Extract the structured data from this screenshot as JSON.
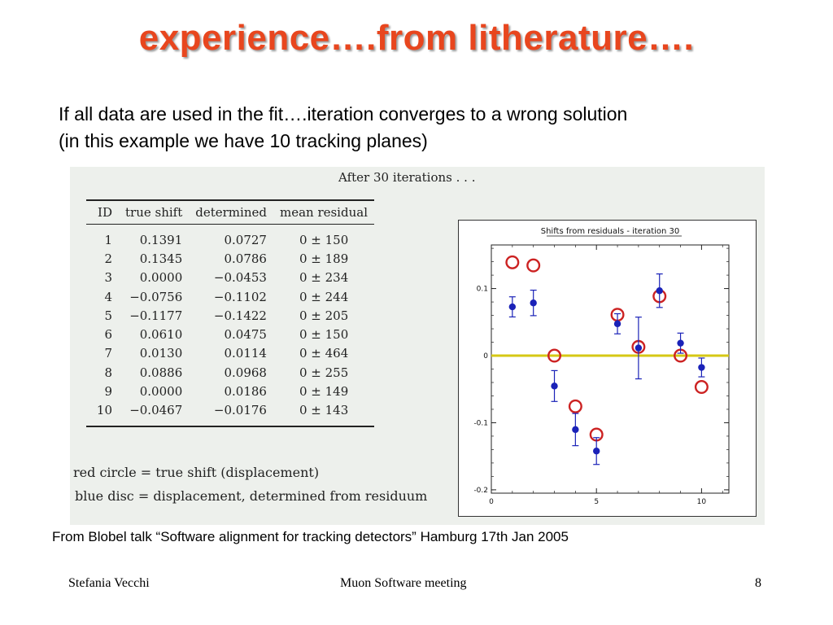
{
  "slide": {
    "title": "experience….from litherature….",
    "intro_line1": "If all data are used in the fit….iteration converges to a wrong solution",
    "intro_line2": "(in this example we have 10 tracking planes)",
    "source": "From Blobel talk “Software alignment for tracking detectors” Hamburg 17th Jan 2005",
    "footer_left": "Stefania Vecchi",
    "footer_center": "Muon Software meeting",
    "footer_right": "8",
    "title_color": "#e8461e"
  },
  "figure": {
    "heading": "After 30 iterations . . .",
    "table": {
      "headers": [
        "ID",
        "true shift",
        "determined",
        "mean residual"
      ],
      "rows": [
        [
          "1",
          "0.1391",
          "0.0727",
          "0 ± 150"
        ],
        [
          "2",
          "0.1345",
          "0.0786",
          "0 ± 189"
        ],
        [
          "3",
          "0.0000",
          "−0.0453",
          "0 ± 234"
        ],
        [
          "4",
          "−0.0756",
          "−0.1102",
          "0 ± 244"
        ],
        [
          "5",
          "−0.1177",
          "−0.1422",
          "0 ± 205"
        ],
        [
          "6",
          "0.0610",
          "0.0475",
          "0 ± 150"
        ],
        [
          "7",
          "0.0130",
          "0.0114",
          "0 ± 464"
        ],
        [
          "8",
          "0.0886",
          "0.0968",
          "0 ± 255"
        ],
        [
          "9",
          "0.0000",
          "0.0186",
          "0 ± 149"
        ],
        [
          "10",
          "−0.0467",
          "−0.0176",
          "0 ± 143"
        ]
      ]
    },
    "legend_red": "red circle = true shift (displacement)",
    "legend_blue": "blue disc = displacement, determined from residuum"
  },
  "chart_data": {
    "type": "scatter",
    "title": "Shifts from residuals - iteration 30",
    "xlabel": "",
    "ylabel": "",
    "xlim": [
      0,
      11.3
    ],
    "ylim": [
      -0.205,
      0.165
    ],
    "xticks": [
      0,
      5,
      10
    ],
    "xtick_labels": [
      "0",
      "5",
      "10"
    ],
    "yticks": [
      0.1,
      0,
      -0.1,
      -0.2
    ],
    "ytick_labels": [
      "0.1",
      "0",
      "-0.1",
      "-0.2"
    ],
    "reference_line": {
      "y": 0,
      "color": "#d6c814"
    },
    "series": [
      {
        "name": "red circle = true shift (displacement)",
        "marker": "open-circle",
        "color": "#cc2222",
        "x": [
          1,
          2,
          3,
          4,
          5,
          6,
          7,
          8,
          9,
          10
        ],
        "y": [
          0.1391,
          0.1345,
          0.0,
          -0.0756,
          -0.1177,
          0.061,
          0.013,
          0.0886,
          0.0,
          -0.0467
        ]
      },
      {
        "name": "blue disc = displacement, determined from residuum",
        "marker": "filled-disc",
        "color": "#1a22b8",
        "x": [
          1,
          2,
          3,
          4,
          5,
          6,
          7,
          8,
          9,
          10
        ],
        "y": [
          0.0727,
          0.0786,
          -0.0453,
          -0.1102,
          -0.1422,
          0.0475,
          0.0114,
          0.0968,
          0.0186,
          -0.0176
        ],
        "yerr": [
          0.015,
          0.019,
          0.023,
          0.024,
          0.02,
          0.015,
          0.046,
          0.025,
          0.015,
          0.014
        ]
      }
    ]
  }
}
